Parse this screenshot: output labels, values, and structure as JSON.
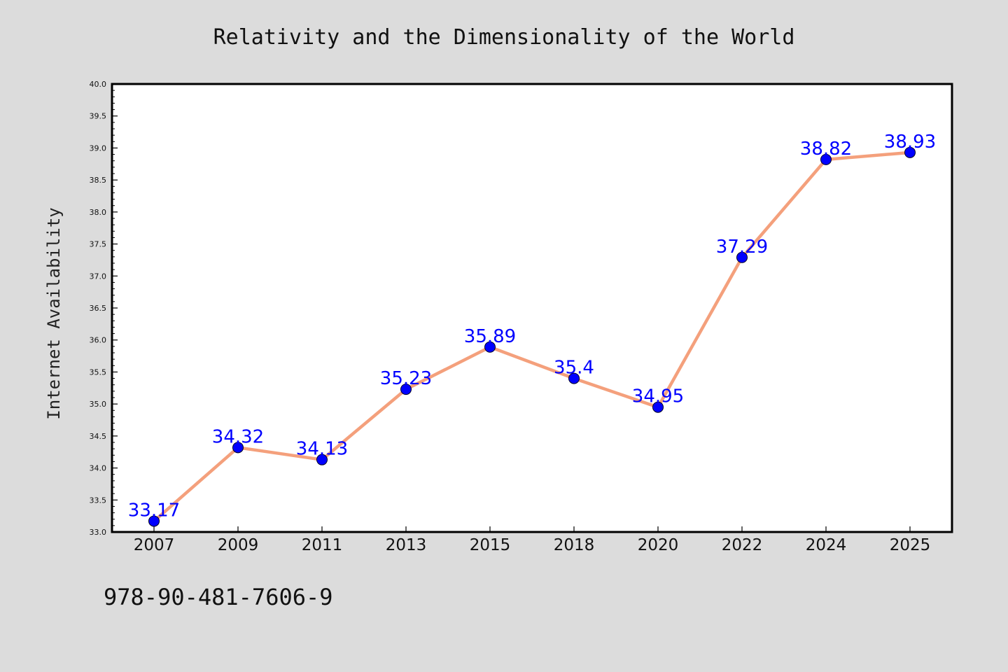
{
  "footer": {
    "isbn": "978-90-481-7606-9"
  },
  "chart_data": {
    "type": "line",
    "title": "Relativity and the Dimensionality of the World",
    "xlabel": "",
    "ylabel": "Internet Availability",
    "categories": [
      "2007",
      "2009",
      "2011",
      "2013",
      "2015",
      "2018",
      "2020",
      "2022",
      "2024",
      "2025"
    ],
    "values": [
      33.17,
      34.32,
      34.13,
      35.23,
      35.89,
      35.4,
      34.95,
      37.29,
      38.82,
      38.93
    ],
    "data_labels": [
      "33.17",
      "34.32",
      "34.13",
      "35.23",
      "35.89",
      "35.4",
      "34.95",
      "37.29",
      "38.82",
      "38.93"
    ],
    "ylim": [
      33.0,
      40.0
    ],
    "yticks": [
      "33.0",
      "33.5",
      "34.0",
      "34.5",
      "35.0",
      "35.5",
      "36.0",
      "36.5",
      "37.0",
      "37.5",
      "38.0",
      "38.5",
      "39.0",
      "39.5",
      "40.0"
    ],
    "grid": false,
    "legend": "none",
    "colors": {
      "line": "#f4a07c",
      "marker": "#0000ff",
      "label": "#0000ff",
      "background": "#dcdcdc",
      "plot_area": "#ffffff"
    }
  }
}
